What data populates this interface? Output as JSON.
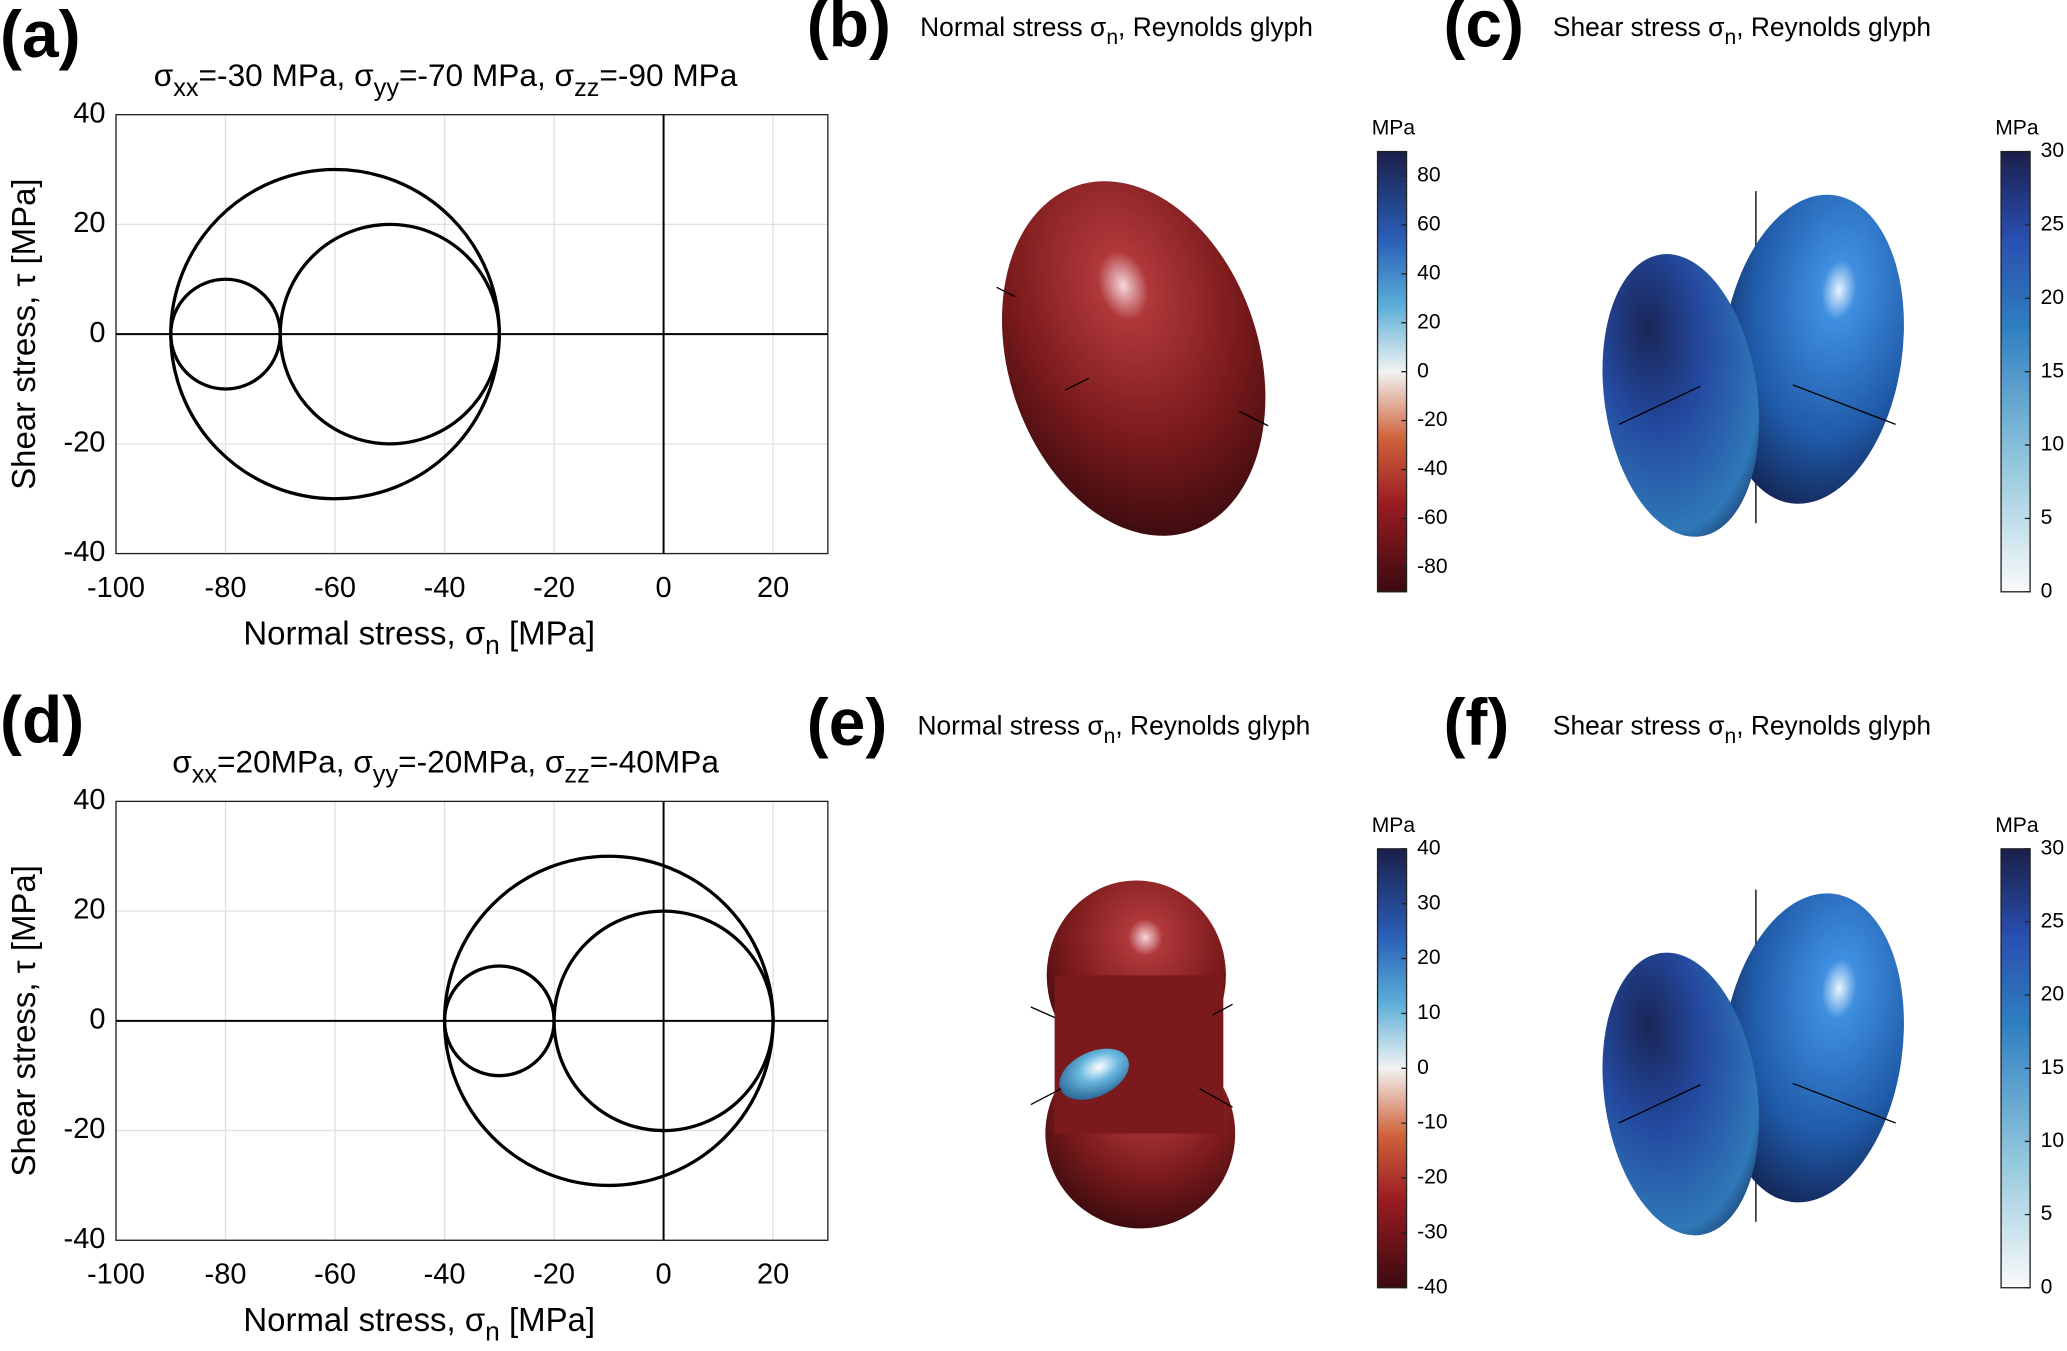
{
  "chart_data": [
    {
      "type": "mohr",
      "label": "(a)",
      "title": [
        "σ",
        "xx",
        "=-30 MPa, σ",
        "yy",
        "=-70 MPa, σ",
        "zz",
        "=-90 MPa"
      ],
      "xlabel": [
        "Normal stress, σ",
        "n",
        " [MPa]"
      ],
      "ylabel": "Shear stress, τ [MPa]",
      "xlim": [
        -100,
        30
      ],
      "ylim": [
        -40,
        40
      ],
      "xticks": [
        -100,
        -80,
        -60,
        -40,
        -20,
        0,
        20
      ],
      "yticks": [
        -40,
        -20,
        0,
        20,
        40
      ],
      "grid": true,
      "circles": [
        {
          "center": -60,
          "radius": 30
        },
        {
          "center": -50,
          "radius": 20
        },
        {
          "center": -80,
          "radius": 10
        }
      ]
    },
    {
      "type": "glyph",
      "label": "(b)",
      "title": [
        "Normal stress σ",
        "n",
        ", Reynolds glyph"
      ],
      "colorbar": {
        "unit": "MPa",
        "lim": [
          -90,
          90
        ],
        "ticks": [
          -80,
          -60,
          -40,
          -20,
          0,
          20,
          40,
          60,
          80
        ]
      }
    },
    {
      "type": "glyph",
      "label": "(c)",
      "title": [
        "Shear stress σ",
        "n",
        ", Reynolds glyph"
      ],
      "colorbar": {
        "unit": "MPa",
        "lim": [
          0,
          30
        ],
        "ticks": [
          0,
          5,
          10,
          15,
          20,
          25,
          30
        ]
      }
    },
    {
      "type": "mohr",
      "label": "(d)",
      "title": [
        "σ",
        "xx",
        "=20MPa, σ",
        "yy",
        "=-20MPa, σ",
        "zz",
        "=-40MPa"
      ],
      "xlabel": [
        "Normal stress, σ",
        "n",
        " [MPa]"
      ],
      "ylabel": "Shear stress, τ [MPa]",
      "xlim": [
        -100,
        30
      ],
      "ylim": [
        -40,
        40
      ],
      "xticks": [
        -100,
        -80,
        -60,
        -40,
        -20,
        0,
        20
      ],
      "yticks": [
        -40,
        -20,
        0,
        20,
        40
      ],
      "grid": true,
      "circles": [
        {
          "center": -10,
          "radius": 30
        },
        {
          "center": 0,
          "radius": 20
        },
        {
          "center": -30,
          "radius": 10
        }
      ]
    },
    {
      "type": "glyph",
      "label": "(e)",
      "title": [
        "Normal stress σ",
        "n",
        ", Reynolds glyph"
      ],
      "colorbar": {
        "unit": "MPa",
        "lim": [
          -40,
          40
        ],
        "ticks": [
          -40,
          -30,
          -20,
          -10,
          0,
          10,
          20,
          30,
          40
        ]
      }
    },
    {
      "type": "glyph",
      "label": "(f)",
      "title": [
        "Shear stress σ",
        "n",
        ", Reynolds glyph"
      ],
      "colorbar": {
        "unit": "MPa",
        "lim": [
          0,
          30
        ],
        "ticks": [
          0,
          5,
          10,
          15,
          20,
          25,
          30
        ]
      }
    }
  ]
}
